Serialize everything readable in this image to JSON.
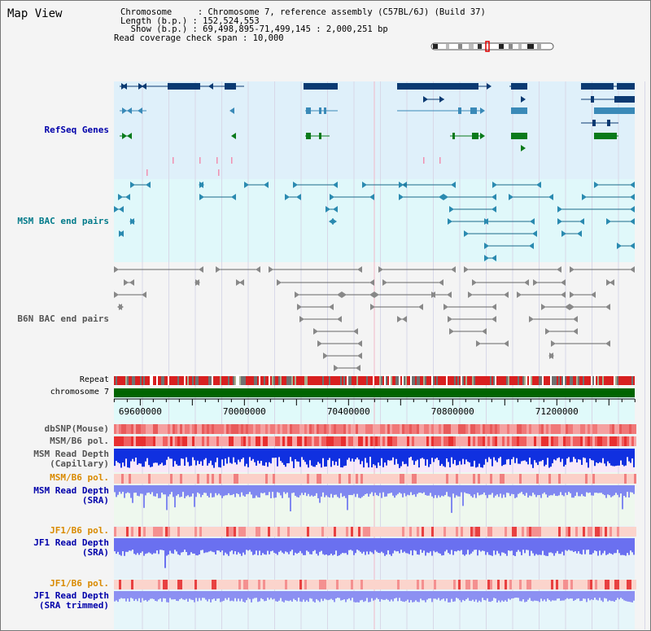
{
  "app": {
    "title": "Map View"
  },
  "header": {
    "chromosome_line": "Chromosome     : Chromosome 7, reference assembly (C57BL/6J) (Build 37)",
    "length_line": "Length (b.p.) : 152,524,553",
    "show_line": "  Show (b.p.) : 69,498,895-71,499,145 : 2,000,251 bp",
    "read_span_line": "Read coverage check span : 10,000"
  },
  "tracks": {
    "refseq": "RefSeq Genes",
    "msm_bac": "MSM BAC end pairs",
    "b6n_bac": "B6N BAC end pairs",
    "repeat": "Repeat",
    "chromosome": "chromosome 7",
    "dbsnp": "dbSNP(Mouse)",
    "msm_b6_pol_1": "MSM/B6 pol.",
    "msm_read_depth_cap": "MSM Read Depth\n(Capillary)",
    "msm_b6_pol_2": "MSM/B6 pol.",
    "msm_read_depth_sra": "MSM Read Depth\n(SRA)",
    "jf1_b6_pol_1": "JF1/B6 pol.",
    "jf1_read_depth_sra": "JF1 Read Depth\n(SRA)",
    "jf1_b6_pol_2": "JF1/B6 pol.",
    "jf1_read_depth_trim": "JF1 Read Depth\n(SRA trimmed)"
  },
  "axis": {
    "ticks": [
      {
        "value": 69600000,
        "label": "69600000"
      },
      {
        "value": 70000000,
        "label": "70000000"
      },
      {
        "value": 70400000,
        "label": "70400000"
      },
      {
        "value": 70800000,
        "label": "70800000"
      },
      {
        "value": 71200000,
        "label": "71200000"
      }
    ],
    "start": 69498895,
    "end": 71499145
  },
  "colors": {
    "refseq_bg": "#dff0fa",
    "msm_bg": "#e0f8fa",
    "b6n_bg": "#f4f4f4",
    "label_blue": "#0000aa",
    "label_teal": "#007a8a",
    "label_orange": "#d98a00",
    "chromosome_green": "#006400"
  }
}
